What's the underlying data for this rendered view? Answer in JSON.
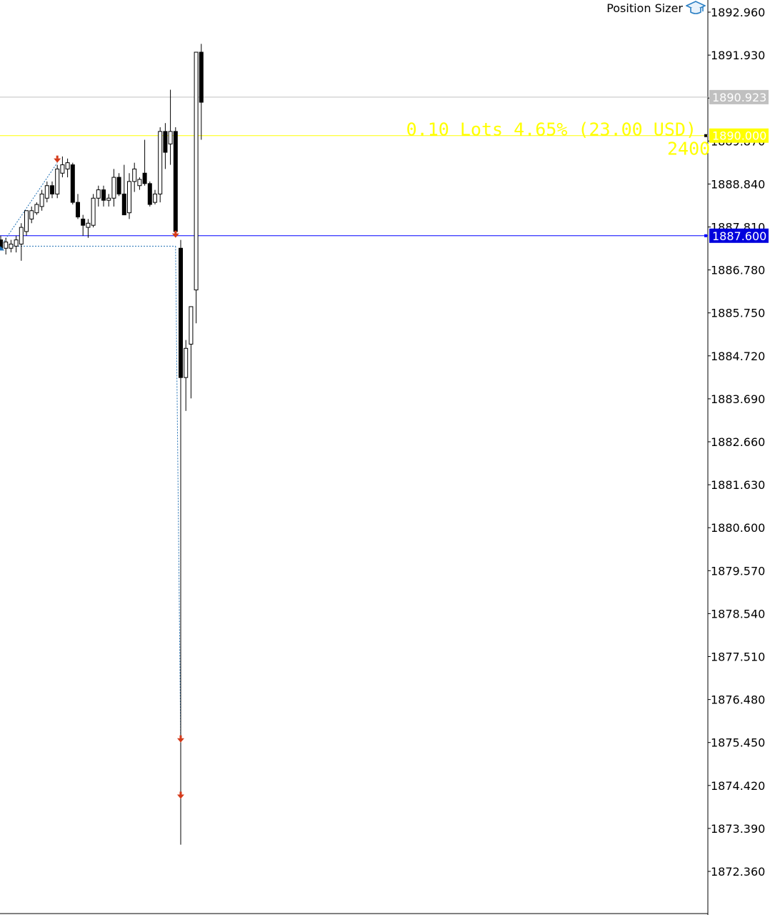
{
  "ea": {
    "name": "Position Sizer",
    "icon": "graduation-cap-icon"
  },
  "colors": {
    "background": "#ffffff",
    "candle_bull_fill": "#ffffff",
    "candle_bear_fill": "#000000",
    "candle_outline": "#000000",
    "bid_line": "#c0c0c0",
    "entry_line": "#ffff00",
    "stop_line": "#0000ff",
    "trade_arrow": "#d43a1a",
    "trade_link": "#1e6fb4",
    "axis": "#000000"
  },
  "position_sizer": {
    "lots_label": "0.10 Lots 4.65% (23.00 USD)",
    "points_label": "2400",
    "entry_price": 1890.0,
    "entry_label": "1890.000",
    "stop_price": 1887.6,
    "stop_label": "1887.600"
  },
  "chart_data": {
    "type": "candlestick",
    "title": "",
    "y_axis": {
      "min": 1871.9,
      "max": 1893.2,
      "ticks": [
        1892.96,
        1891.93,
        1890.9,
        1889.87,
        1888.84,
        1887.81,
        1886.78,
        1885.75,
        1884.72,
        1883.69,
        1882.66,
        1881.63,
        1880.6,
        1879.57,
        1878.54,
        1877.51,
        1876.48,
        1875.45,
        1874.42,
        1873.39,
        1872.36
      ],
      "tick_labels": [
        "1892.960",
        "1891.930",
        "1890.900",
        "1889.870",
        "1888.840",
        "1887.810",
        "1886.780",
        "1885.750",
        "1884.720",
        "1883.690",
        "1882.660",
        "1881.630",
        "1880.600",
        "1879.570",
        "1878.540",
        "1877.510",
        "1876.480",
        "1875.450",
        "1874.420",
        "1873.390",
        "1872.360"
      ]
    },
    "price_tags": [
      {
        "name": "bid",
        "price": 1890.923,
        "label": "1890.923",
        "bg": "#c0c0c0",
        "fg": "#ffffff"
      },
      {
        "name": "entry",
        "price": 1890.0,
        "label": "1890.000",
        "bg": "#ffff00",
        "fg": "#ffffff"
      },
      {
        "name": "stop-loss",
        "price": 1887.6,
        "label": "1887.600",
        "bg": "#0000dd",
        "fg": "#ffffff"
      }
    ],
    "candles": [
      {
        "o": 1887.5,
        "h": 1887.6,
        "l": 1887.3,
        "c": 1887.3
      },
      {
        "o": 1887.3,
        "h": 1887.55,
        "l": 1887.15,
        "c": 1887.45
      },
      {
        "o": 1887.3,
        "h": 1887.5,
        "l": 1887.2,
        "c": 1887.4
      },
      {
        "o": 1887.35,
        "h": 1887.6,
        "l": 1887.2,
        "c": 1887.5
      },
      {
        "o": 1887.4,
        "h": 1887.9,
        "l": 1887.0,
        "c": 1887.8
      },
      {
        "o": 1887.7,
        "h": 1888.2,
        "l": 1887.6,
        "c": 1888.2
      },
      {
        "o": 1888.0,
        "h": 1888.3,
        "l": 1887.9,
        "c": 1888.2
      },
      {
        "o": 1888.15,
        "h": 1888.4,
        "l": 1888.1,
        "c": 1888.35
      },
      {
        "o": 1888.3,
        "h": 1888.7,
        "l": 1888.2,
        "c": 1888.6
      },
      {
        "o": 1888.5,
        "h": 1888.9,
        "l": 1888.4,
        "c": 1888.8
      },
      {
        "o": 1888.8,
        "h": 1888.9,
        "l": 1888.5,
        "c": 1888.6
      },
      {
        "o": 1888.6,
        "h": 1889.3,
        "l": 1888.5,
        "c": 1889.2
      },
      {
        "o": 1889.1,
        "h": 1889.5,
        "l": 1889.0,
        "c": 1889.3
      },
      {
        "o": 1889.2,
        "h": 1889.45,
        "l": 1889.0,
        "c": 1889.35
      },
      {
        "o": 1889.3,
        "h": 1889.35,
        "l": 1888.35,
        "c": 1888.4
      },
      {
        "o": 1888.4,
        "h": 1888.6,
        "l": 1888.0,
        "c": 1888.05
      },
      {
        "o": 1888.0,
        "h": 1888.1,
        "l": 1887.6,
        "c": 1887.85
      },
      {
        "o": 1887.8,
        "h": 1888.0,
        "l": 1887.55,
        "c": 1887.9
      },
      {
        "o": 1887.85,
        "h": 1888.6,
        "l": 1887.8,
        "c": 1888.5
      },
      {
        "o": 1888.5,
        "h": 1888.8,
        "l": 1888.3,
        "c": 1888.7
      },
      {
        "o": 1888.7,
        "h": 1888.8,
        "l": 1888.3,
        "c": 1888.45
      },
      {
        "o": 1888.45,
        "h": 1888.6,
        "l": 1888.3,
        "c": 1888.5
      },
      {
        "o": 1888.5,
        "h": 1889.2,
        "l": 1888.3,
        "c": 1889.0
      },
      {
        "o": 1889.0,
        "h": 1889.1,
        "l": 1888.55,
        "c": 1888.6
      },
      {
        "o": 1888.6,
        "h": 1889.3,
        "l": 1888.1,
        "c": 1888.1
      },
      {
        "o": 1888.15,
        "h": 1889.1,
        "l": 1888.0,
        "c": 1888.9
      },
      {
        "o": 1888.9,
        "h": 1889.35,
        "l": 1888.65,
        "c": 1889.2
      },
      {
        "o": 1888.8,
        "h": 1889.0,
        "l": 1888.7,
        "c": 1888.95
      },
      {
        "o": 1889.1,
        "h": 1889.9,
        "l": 1888.8,
        "c": 1888.85
      },
      {
        "o": 1888.85,
        "h": 1888.9,
        "l": 1888.3,
        "c": 1888.35
      },
      {
        "o": 1888.4,
        "h": 1888.7,
        "l": 1888.35,
        "c": 1888.6
      },
      {
        "o": 1888.6,
        "h": 1890.2,
        "l": 1888.4,
        "c": 1890.1
      },
      {
        "o": 1890.1,
        "h": 1890.3,
        "l": 1889.2,
        "c": 1889.6
      },
      {
        "o": 1889.8,
        "h": 1891.1,
        "l": 1889.3,
        "c": 1890.1
      },
      {
        "o": 1890.1,
        "h": 1890.2,
        "l": 1887.6,
        "c": 1887.7
      },
      {
        "o": 1887.3,
        "h": 1887.5,
        "l": 1873.0,
        "c": 1884.2
      },
      {
        "o": 1884.2,
        "h": 1885.1,
        "l": 1883.4,
        "c": 1884.9
      },
      {
        "o": 1885.0,
        "h": 1885.8,
        "l": 1883.7,
        "c": 1885.9
      },
      {
        "o": 1886.3,
        "h": 1892.0,
        "l": 1885.5,
        "c": 1892.0
      },
      {
        "o": 1892.0,
        "h": 1892.2,
        "l": 1889.9,
        "c": 1890.8
      }
    ],
    "trade_arrows": [
      {
        "candle": 11,
        "price": 1889.35,
        "dir": "down"
      },
      {
        "candle": 34,
        "price": 1887.55,
        "dir": "down"
      },
      {
        "candle": 35,
        "price": 1875.45,
        "dir": "down"
      },
      {
        "candle": 35,
        "price": 1874.1,
        "dir": "down"
      },
      {
        "candle": 0,
        "price": 1887.35,
        "dir": "up"
      }
    ],
    "trade_links": [
      {
        "from": {
          "candle": 0,
          "price": 1887.35
        },
        "to": {
          "candle": 11,
          "price": 1889.35
        }
      },
      {
        "from": {
          "candle": 0,
          "price": 1887.35
        },
        "to": {
          "candle": 34,
          "price": 1887.35
        }
      },
      {
        "from": {
          "candle": 34,
          "price": 1887.35
        },
        "to": {
          "candle": 35,
          "price": 1875.45
        }
      },
      {
        "from": {
          "candle": 35,
          "price": 1875.45
        },
        "to": {
          "candle": 35,
          "price": 1874.1
        }
      }
    ]
  }
}
